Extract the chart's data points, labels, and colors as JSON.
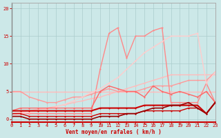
{
  "bg_color": "#cce8e8",
  "grid_color": "#aacccc",
  "xlabel": "Vent moyen/en rafales ( km/h )",
  "xlim": [
    0,
    23
  ],
  "ylim": [
    -0.5,
    21
  ],
  "yticks": [
    0,
    5,
    10,
    15,
    20
  ],
  "xticks": [
    0,
    1,
    2,
    3,
    4,
    5,
    6,
    7,
    8,
    9,
    10,
    11,
    12,
    13,
    14,
    15,
    16,
    17,
    18,
    19,
    20,
    21,
    22,
    23
  ],
  "series": [
    {
      "comment": "light pink line - nearly flat around 5, slight rise",
      "x": [
        0,
        1,
        2,
        3,
        4,
        5,
        6,
        7,
        8,
        9,
        10,
        11,
        12,
        13,
        14,
        15,
        16,
        17,
        18,
        19,
        20,
        21,
        22,
        23
      ],
      "y": [
        5,
        5,
        5,
        5,
        5,
        5,
        5,
        5,
        5,
        5,
        5,
        5,
        5,
        5,
        5,
        5,
        5,
        5,
        5,
        5,
        5,
        5,
        5,
        5
      ],
      "color": "#ffbbbb",
      "lw": 1.0,
      "marker": "o",
      "ms": 1.5
    },
    {
      "comment": "light pink diagonal rising line from ~1 to ~8",
      "x": [
        0,
        1,
        2,
        3,
        4,
        5,
        6,
        7,
        8,
        9,
        10,
        11,
        12,
        13,
        14,
        15,
        16,
        17,
        18,
        19,
        20,
        21,
        22,
        23
      ],
      "y": [
        1,
        1.2,
        1.5,
        1.8,
        2,
        2.3,
        2.6,
        3,
        3.3,
        3.7,
        4,
        4.5,
        5,
        5.5,
        6,
        6.5,
        7,
        7.5,
        8,
        8,
        8,
        8,
        8,
        8
      ],
      "color": "#ffbbbb",
      "lw": 1.0,
      "marker": "o",
      "ms": 1.5
    },
    {
      "comment": "medium pink wavy line - rises from ~5 to ~8 then varies",
      "x": [
        0,
        1,
        2,
        3,
        4,
        5,
        6,
        7,
        8,
        9,
        10,
        11,
        12,
        13,
        14,
        15,
        16,
        17,
        18,
        19,
        20,
        21,
        22,
        23
      ],
      "y": [
        5,
        5,
        4,
        3.5,
        3,
        3,
        3.5,
        4,
        4,
        4.5,
        5,
        5.5,
        5,
        5,
        5,
        5.5,
        6,
        6,
        6,
        6.5,
        7,
        7,
        7,
        8.5
      ],
      "color": "#ff9999",
      "lw": 1.0,
      "marker": "o",
      "ms": 1.5
    },
    {
      "comment": "pink line with big peak at x=11 ~15.5, x=12 ~16.5 then drops x=13 ~11.5",
      "x": [
        0,
        1,
        2,
        3,
        4,
        5,
        6,
        7,
        8,
        9,
        10,
        11,
        12,
        13,
        14,
        15,
        16,
        17,
        18,
        19,
        20,
        21,
        22,
        23
      ],
      "y": [
        1,
        1,
        1,
        1,
        1,
        1,
        1,
        1,
        1,
        1,
        9,
        15.5,
        16.5,
        11,
        15,
        15,
        16,
        16.5,
        3,
        3,
        3,
        3,
        6.5,
        3
      ],
      "color": "#ff8888",
      "lw": 1.0,
      "marker": "o",
      "ms": 1.5
    },
    {
      "comment": "another pale pink long rising diagonal from 0 to ~15",
      "x": [
        0,
        1,
        2,
        3,
        4,
        5,
        6,
        7,
        8,
        9,
        10,
        11,
        12,
        13,
        14,
        15,
        16,
        17,
        18,
        19,
        20,
        21,
        22,
        23
      ],
      "y": [
        0.5,
        1,
        1.2,
        1.5,
        1.8,
        2.2,
        2.7,
        3.3,
        4,
        4.8,
        5.5,
        6.5,
        7.5,
        9,
        10.5,
        12,
        13,
        14,
        15,
        15,
        15,
        15.5,
        6.5,
        8.5
      ],
      "color": "#ffcccc",
      "lw": 1.0,
      "marker": "o",
      "ms": 1.5
    },
    {
      "comment": "medium red - rises to peaks around 5-6 range",
      "x": [
        0,
        1,
        2,
        3,
        4,
        5,
        6,
        7,
        8,
        9,
        10,
        11,
        12,
        13,
        14,
        15,
        16,
        17,
        18,
        19,
        20,
        21,
        22,
        23
      ],
      "y": [
        1.5,
        2,
        2,
        2,
        2,
        2,
        2,
        2,
        2,
        2,
        5,
        6,
        5.5,
        5,
        5,
        4,
        6,
        5,
        4.5,
        5,
        4.5,
        4,
        5,
        3
      ],
      "color": "#ff6666",
      "lw": 1.0,
      "marker": "o",
      "ms": 1.5
    },
    {
      "comment": "dark red main line - mostly flat 1-3",
      "x": [
        0,
        1,
        2,
        3,
        4,
        5,
        6,
        7,
        8,
        9,
        10,
        11,
        12,
        13,
        14,
        15,
        16,
        17,
        18,
        19,
        20,
        21,
        22,
        23
      ],
      "y": [
        1.5,
        1.5,
        1.5,
        1.5,
        1.5,
        1.5,
        1.5,
        1.5,
        1.5,
        1.5,
        2,
        2,
        2,
        2,
        2,
        2.5,
        2.5,
        2.5,
        2.5,
        2.5,
        2.5,
        2.5,
        1,
        3
      ],
      "color": "#cc0000",
      "lw": 1.5,
      "marker": "o",
      "ms": 1.5
    },
    {
      "comment": "dark red secondary - very low, near 0-2",
      "x": [
        0,
        1,
        2,
        3,
        4,
        5,
        6,
        7,
        8,
        9,
        10,
        11,
        12,
        13,
        14,
        15,
        16,
        17,
        18,
        19,
        20,
        21,
        22,
        23
      ],
      "y": [
        1,
        1,
        0.5,
        0.5,
        0.5,
        0.5,
        0.5,
        0.5,
        0.5,
        0.5,
        1,
        1,
        1,
        1,
        1,
        1.5,
        1.5,
        1.5,
        1.5,
        1.5,
        2,
        2,
        1,
        3
      ],
      "color": "#cc0000",
      "lw": 1.0,
      "marker": "o",
      "ms": 1.5
    },
    {
      "comment": "darkest red - nearly 0 to start then rises slightly",
      "x": [
        0,
        1,
        2,
        3,
        4,
        5,
        6,
        7,
        8,
        9,
        10,
        11,
        12,
        13,
        14,
        15,
        16,
        17,
        18,
        19,
        20,
        21,
        22,
        23
      ],
      "y": [
        0.5,
        0.5,
        0,
        0,
        0,
        0,
        0,
        0,
        0,
        0,
        0.5,
        0.5,
        0.5,
        1,
        1,
        1.5,
        2,
        2,
        2.5,
        2.5,
        3,
        2,
        1,
        3
      ],
      "color": "#990000",
      "lw": 1.2,
      "marker": "o",
      "ms": 1.5
    }
  ]
}
